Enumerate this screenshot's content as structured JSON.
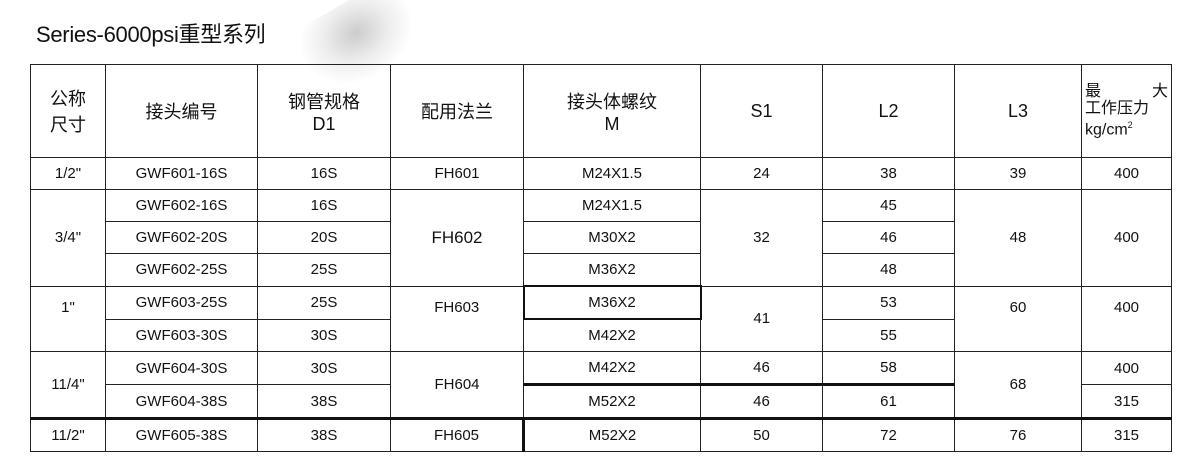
{
  "title": "Series-6000psi重型系列",
  "headers": {
    "size": [
      "公称",
      "尺寸"
    ],
    "code": "接头编号",
    "pipe": [
      "钢管规格",
      "D1"
    ],
    "flange": "配用法兰",
    "thread": [
      "接头体螺纹",
      "M"
    ],
    "s1": "S1",
    "l2": "L2",
    "l3": "L3",
    "pressure": [
      "最",
      "大",
      "工作压力",
      "kg/cm",
      "2"
    ]
  },
  "rows": [
    {
      "size": "1/2\"",
      "code": "GWF601-16S",
      "pipe": "16S",
      "flange": "FH601",
      "thread": "M24X1.5",
      "s1": "24",
      "l2": "38",
      "l3": "39",
      "pressure": "400"
    },
    {
      "size": "3/4\"",
      "code": "GWF602-16S",
      "pipe": "16S",
      "flange": "FH602",
      "thread": "M24X1.5",
      "s1": "32",
      "l2": "45",
      "l3": "48",
      "pressure": "400"
    },
    {
      "code": "GWF602-20S",
      "pipe": "20S",
      "thread": "M30X2",
      "l2": "46"
    },
    {
      "code": "GWF602-25S",
      "pipe": "25S",
      "thread": "M36X2",
      "l2": "48"
    },
    {
      "size": "1\"",
      "code": "GWF603-25S",
      "pipe": "25S",
      "flange": "FH603",
      "thread": "M36X2",
      "s1": "41",
      "l2": "53",
      "l3": "60",
      "pressure": "400"
    },
    {
      "code": "GWF603-30S",
      "pipe": "30S",
      "thread": "M42X2",
      "l2": "55"
    },
    {
      "size": "11/4\"",
      "code": "GWF604-30S",
      "pipe": "30S",
      "flange": "FH604",
      "thread": "M42X2",
      "s1": "46",
      "l2": "58",
      "l3": "68",
      "pressure": "400"
    },
    {
      "code": "GWF604-38S",
      "pipe": "38S",
      "thread": "M52X2",
      "s1": "46",
      "l2": "61",
      "pressure": "315"
    },
    {
      "size": "11/2\"",
      "code": "GWF605-38S",
      "pipe": "38S",
      "flange": "FH605",
      "thread": "M52X2",
      "s1": "50",
      "l2": "72",
      "l3": "76",
      "pressure": "315"
    }
  ]
}
